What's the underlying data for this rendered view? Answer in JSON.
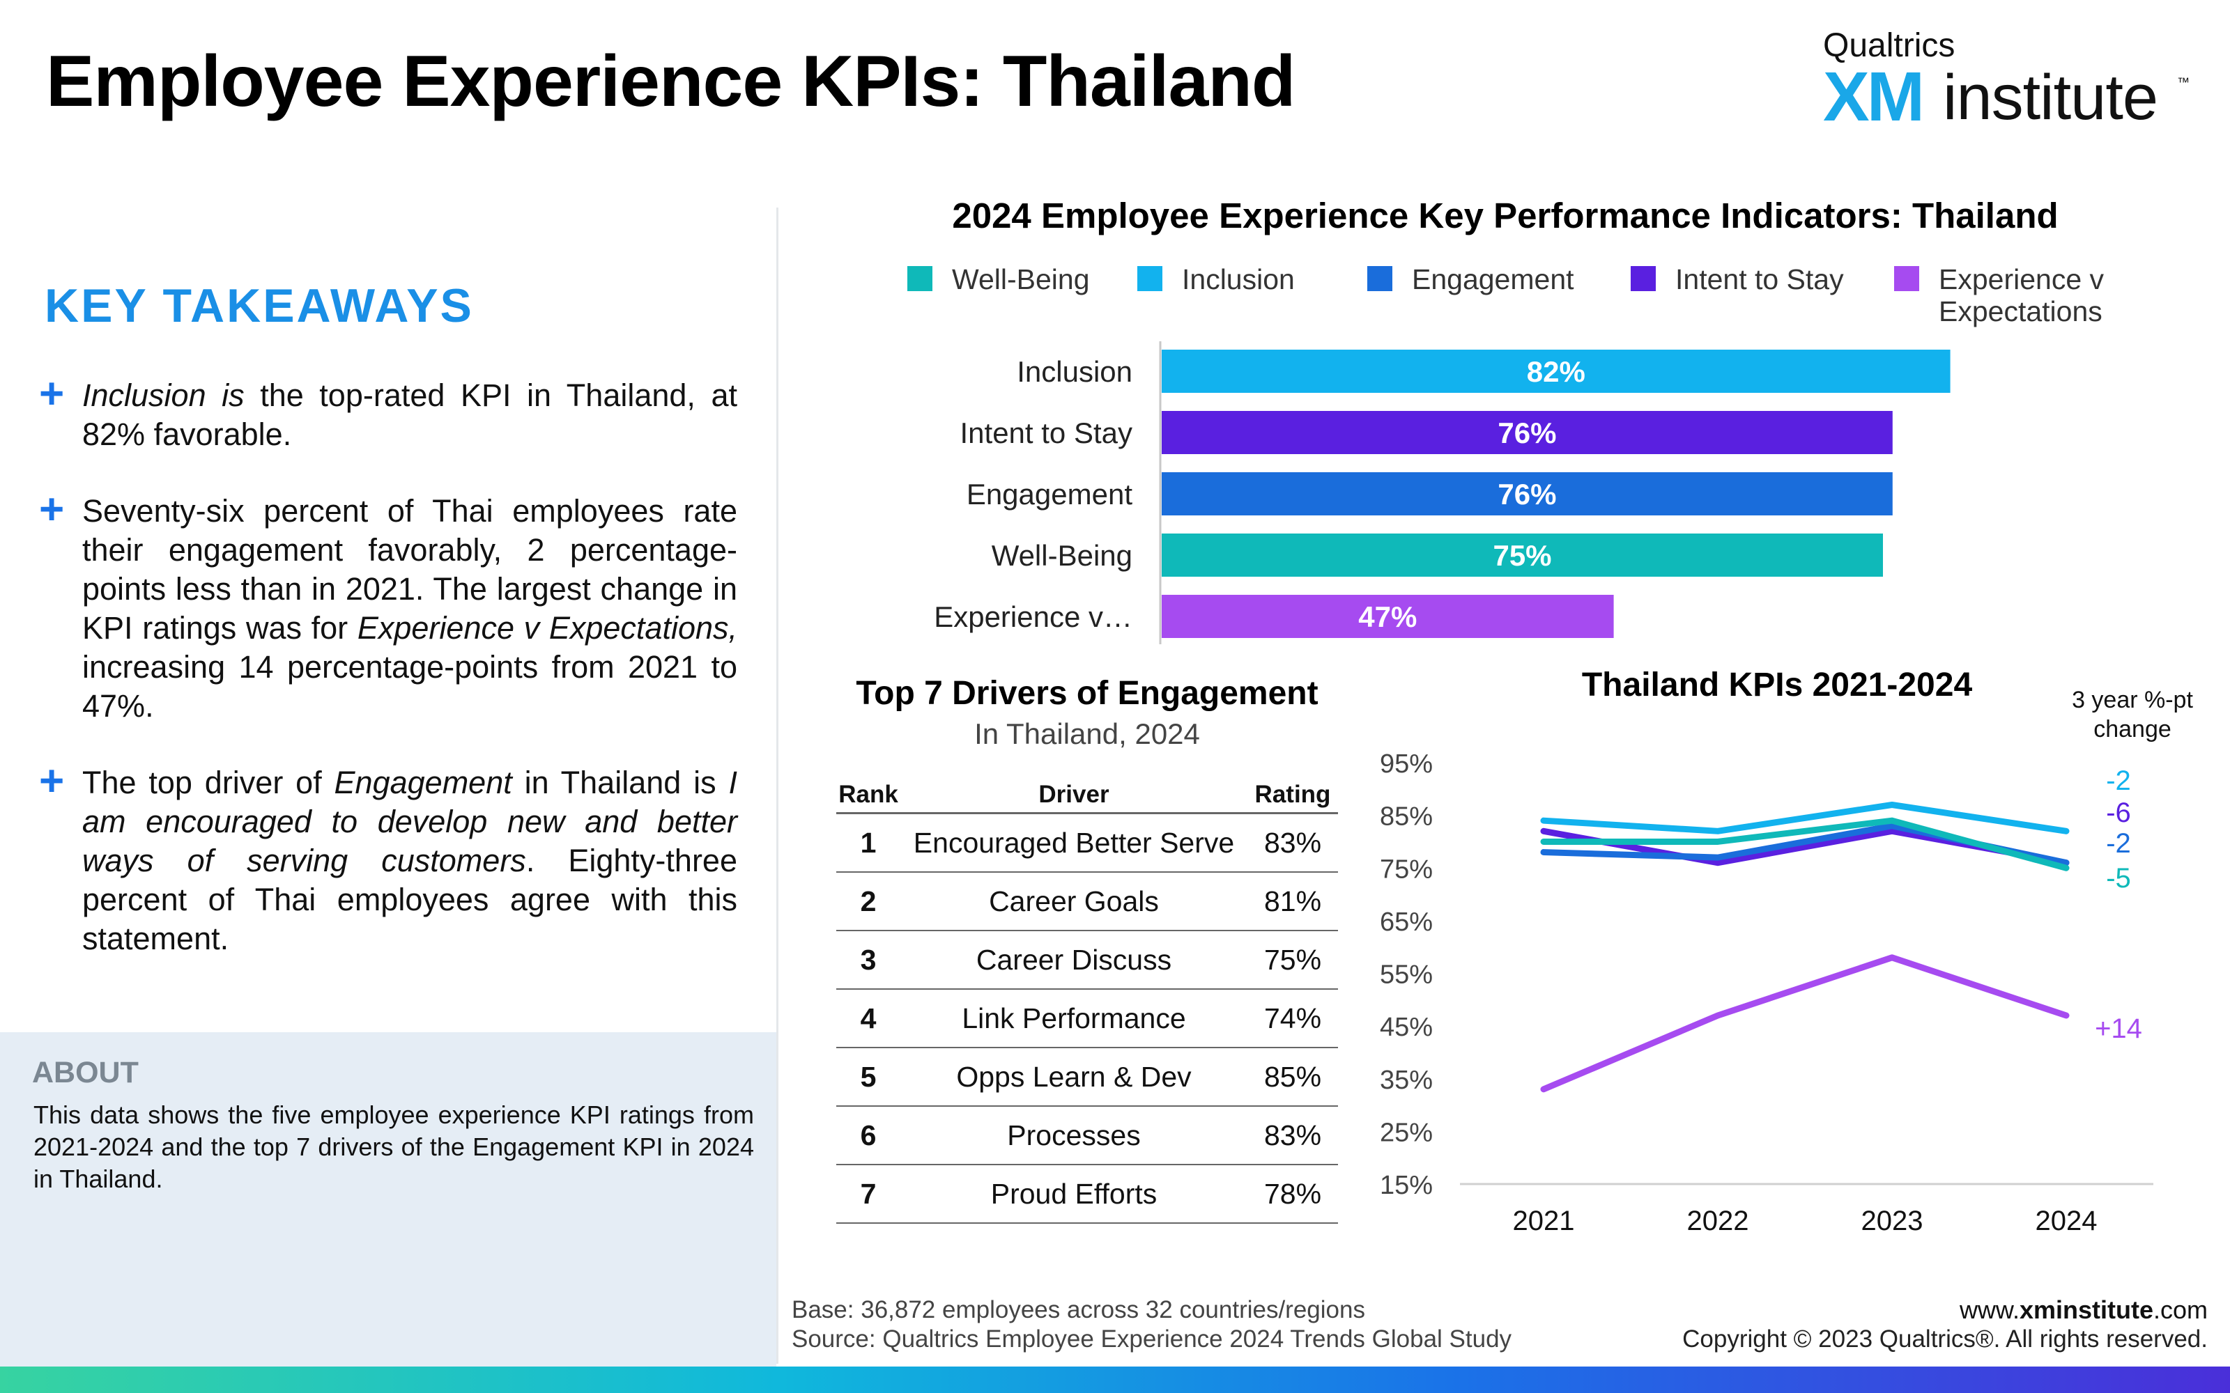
{
  "header": {
    "title": "Employee Experience KPIs: Thailand",
    "logo": {
      "company": "Qualtrics",
      "xm": "XM",
      "institute": "institute",
      "tm": "™"
    }
  },
  "takeaways": {
    "title": "KEY TAKEAWAYS",
    "bullets": [
      [
        {
          "t": "Inclusion is",
          "i": true
        },
        {
          "t": " the top-rated KPI in Thailand, at 82% favorable."
        }
      ],
      [
        {
          "t": "Seventy-six percent of Thai employees rate their engagement favorably, 2 percentage-points less than in 2021. The largest change in KPI ratings was for "
        },
        {
          "t": "Experience v Expectations,",
          "i": true
        },
        {
          "t": " increasing 14 percentage-points from 2021 to 47%."
        }
      ],
      [
        {
          "t": "The top driver of "
        },
        {
          "t": "Engagement",
          "i": true
        },
        {
          "t": " in Thailand is "
        },
        {
          "t": "I am encouraged to develop new and better ways of serving customers",
          "i": true
        },
        {
          "t": ". Eighty-three percent of Thai employees agree with this statement."
        }
      ]
    ]
  },
  "about": {
    "title": "ABOUT",
    "text": "This data shows the five employee experience KPI ratings from 2021-2024 and the top 7 drivers of the Engagement KPI in 2024 in Thailand."
  },
  "bar_chart_title": "2024 Employee Experience Key Performance Indicators: Thailand",
  "legend": [
    {
      "label": "Well-Being",
      "color": "#0fb9b9"
    },
    {
      "label": "Inclusion",
      "color": "#12b2ee"
    },
    {
      "label": "Engagement",
      "color": "#1a6ddb"
    },
    {
      "label": "Intent to Stay",
      "color": "#5a20e0"
    },
    {
      "label": "Experience v Expectations",
      "color": "#a64bf0"
    }
  ],
  "drivers": {
    "title": "Top 7 Drivers of Engagement",
    "subtitle": "In Thailand, 2024",
    "headers": [
      "Rank",
      "Driver",
      "Rating"
    ],
    "rows": [
      [
        "1",
        "Encouraged Better Serve",
        "83%"
      ],
      [
        "2",
        "Career Goals",
        "81%"
      ],
      [
        "3",
        "Career Discuss",
        "75%"
      ],
      [
        "4",
        "Link Performance",
        "74%"
      ],
      [
        "5",
        "Opps Learn & Dev",
        "85%"
      ],
      [
        "6",
        "Processes",
        "83%"
      ],
      [
        "7",
        "Proud Efforts",
        "78%"
      ]
    ]
  },
  "line_chart_title": "Thailand KPIs 2021-2024",
  "change_header": "3 year %-pt change",
  "chart_data": [
    {
      "type": "bar",
      "orientation": "horizontal",
      "title": "2024 Employee Experience Key Performance Indicators: Thailand",
      "categories": [
        "Inclusion",
        "Intent to Stay",
        "Engagement",
        "Well-Being",
        "Experience v…"
      ],
      "values": [
        82,
        76,
        76,
        75,
        47
      ],
      "data_labels": [
        "82%",
        "76%",
        "76%",
        "75%",
        "47%"
      ],
      "colors": [
        "#12b2ee",
        "#5a20e0",
        "#1a6ddb",
        "#0fb9b9",
        "#a64bf0"
      ],
      "xlim": [
        0,
        100
      ]
    },
    {
      "type": "line",
      "title": "Thailand KPIs 2021-2024",
      "x": [
        "2021",
        "2022",
        "2023",
        "2024"
      ],
      "ylim": [
        15,
        95
      ],
      "yticks": [
        "95%",
        "85%",
        "75%",
        "65%",
        "55%",
        "45%",
        "35%",
        "25%",
        "15%"
      ],
      "series": [
        {
          "name": "Inclusion",
          "color": "#12b2ee",
          "values": [
            84,
            82,
            87,
            82
          ],
          "change": "-2"
        },
        {
          "name": "Intent to Stay",
          "color": "#5a20e0",
          "values": [
            82,
            76,
            82,
            76
          ],
          "change": "-6"
        },
        {
          "name": "Engagement",
          "color": "#1a6ddb",
          "values": [
            78,
            77,
            83,
            76
          ],
          "change": "-2"
        },
        {
          "name": "Well-Being",
          "color": "#0fb9b9",
          "values": [
            80,
            80,
            84,
            75
          ],
          "change": "-5"
        },
        {
          "name": "Experience v Expectations",
          "color": "#a64bf0",
          "values": [
            33,
            47,
            58,
            47
          ],
          "change": "+14"
        }
      ]
    }
  ],
  "footer": {
    "base": "Base: 36,872 employees across 32 countries/regions",
    "source": "Source: Qualtrics Employee Experience 2024 Trends Global Study",
    "website_prefix": "www.",
    "website_bold": "xminstitute",
    "website_suffix": ".com",
    "copyright": "Copyright © 2023 Qualtrics®. All rights reserved."
  }
}
